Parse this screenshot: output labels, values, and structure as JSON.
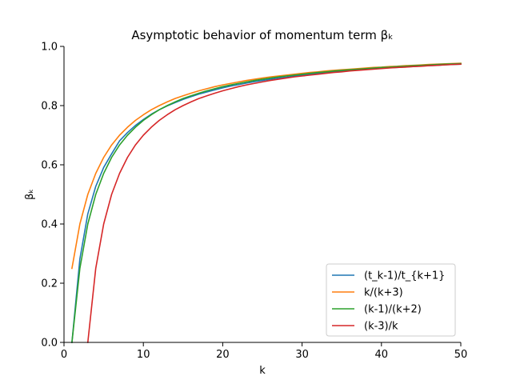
{
  "chart_data": {
    "type": "line",
    "title": "Asymptotic behavior of momentum term βₖ",
    "xlabel": "k",
    "ylabel": "βₖ",
    "xlim": [
      0,
      50
    ],
    "ylim": [
      0,
      1.0
    ],
    "xticks": [
      0,
      10,
      20,
      30,
      40,
      50
    ],
    "xtick_labels": [
      "0",
      "10",
      "20",
      "30",
      "40",
      "50"
    ],
    "yticks": [
      0,
      0.2,
      0.4,
      0.6,
      0.8,
      1.0
    ],
    "ytick_labels": [
      "0.0",
      "0.2",
      "0.4",
      "0.6",
      "0.8",
      "1.0"
    ],
    "grid": false,
    "legend_position": "lower-right",
    "x": [
      1,
      2,
      3,
      4,
      5,
      6,
      7,
      8,
      9,
      10,
      11,
      12,
      13,
      14,
      15,
      16,
      17,
      18,
      19,
      20,
      21,
      22,
      23,
      24,
      25,
      26,
      27,
      28,
      29,
      30,
      31,
      32,
      33,
      34,
      35,
      36,
      37,
      38,
      39,
      40,
      41,
      42,
      43,
      44,
      45,
      46,
      47,
      48,
      49,
      50
    ],
    "series": [
      {
        "name": "(t_k-1)/t_{k+1}",
        "color": "#1f77b4",
        "values": [
          0.0,
          0.282,
          0.434,
          0.527,
          0.591,
          0.637,
          0.681,
          0.709,
          0.733,
          0.753,
          0.771,
          0.786,
          0.799,
          0.81,
          0.821,
          0.83,
          0.839,
          0.846,
          0.853,
          0.86,
          0.866,
          0.871,
          0.876,
          0.881,
          0.885,
          0.889,
          0.893,
          0.896,
          0.9,
          0.903,
          0.906,
          0.909,
          0.911,
          0.914,
          0.916,
          0.918,
          0.92,
          0.922,
          0.924,
          0.926,
          0.928,
          0.929,
          0.931,
          0.932,
          0.934,
          0.935,
          0.936,
          0.938,
          0.939,
          0.94
        ]
      },
      {
        "name": "k/(k+3)",
        "color": "#ff7f0e",
        "values": [
          0.25,
          0.4,
          0.5,
          0.571,
          0.625,
          0.667,
          0.7,
          0.727,
          0.75,
          0.769,
          0.786,
          0.8,
          0.8125,
          0.824,
          0.833,
          0.842,
          0.85,
          0.857,
          0.864,
          0.87,
          0.875,
          0.88,
          0.885,
          0.889,
          0.893,
          0.897,
          0.9,
          0.903,
          0.906,
          0.909,
          0.912,
          0.914,
          0.917,
          0.919,
          0.921,
          0.923,
          0.925,
          0.927,
          0.929,
          0.93,
          0.932,
          0.933,
          0.935,
          0.936,
          0.9375,
          0.939,
          0.94,
          0.941,
          0.942,
          0.943
        ]
      },
      {
        "name": "(k-1)/(k+2)",
        "color": "#2ca02c",
        "values": [
          0.0,
          0.25,
          0.4,
          0.5,
          0.571,
          0.625,
          0.667,
          0.7,
          0.727,
          0.75,
          0.769,
          0.786,
          0.8,
          0.8125,
          0.824,
          0.833,
          0.842,
          0.85,
          0.857,
          0.864,
          0.87,
          0.875,
          0.88,
          0.885,
          0.889,
          0.893,
          0.897,
          0.9,
          0.903,
          0.906,
          0.909,
          0.912,
          0.914,
          0.917,
          0.919,
          0.921,
          0.923,
          0.925,
          0.927,
          0.929,
          0.93,
          0.932,
          0.933,
          0.935,
          0.936,
          0.9375,
          0.939,
          0.94,
          0.941,
          0.942
        ]
      },
      {
        "name": "(k-3)/k",
        "color": "#d62728",
        "values": [
          null,
          null,
          0.0,
          0.25,
          0.4,
          0.5,
          0.571,
          0.625,
          0.667,
          0.7,
          0.727,
          0.75,
          0.769,
          0.786,
          0.8,
          0.8125,
          0.824,
          0.833,
          0.842,
          0.85,
          0.857,
          0.864,
          0.87,
          0.875,
          0.88,
          0.885,
          0.889,
          0.893,
          0.897,
          0.9,
          0.903,
          0.906,
          0.909,
          0.912,
          0.914,
          0.917,
          0.919,
          0.921,
          0.923,
          0.925,
          0.927,
          0.929,
          0.93,
          0.932,
          0.933,
          0.935,
          0.936,
          0.9375,
          0.939,
          0.94
        ]
      }
    ]
  }
}
